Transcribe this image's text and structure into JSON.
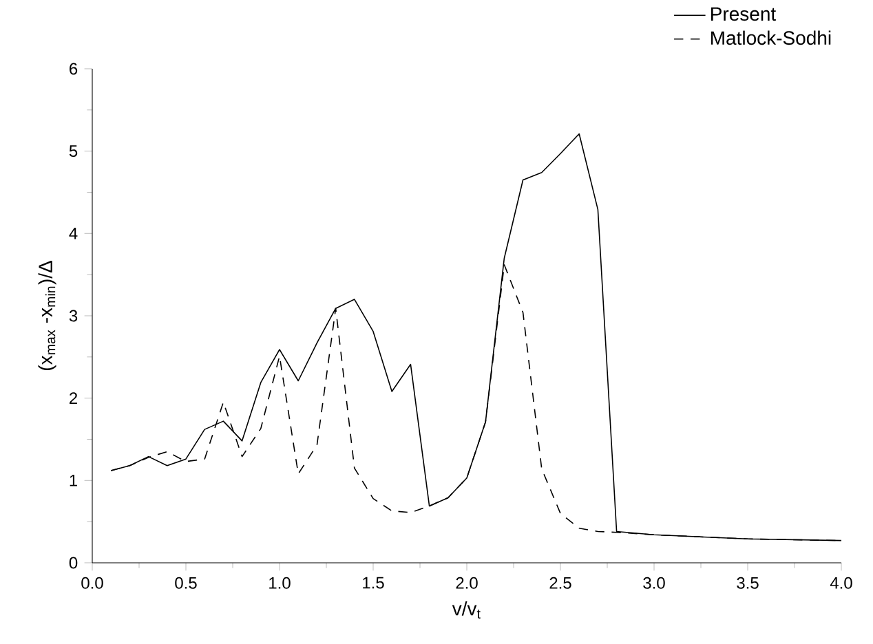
{
  "chart_data": {
    "type": "line",
    "xlabel": "v/v$_{t}$",
    "ylabel": "(x$_{max}$ -x$_{min}$)/Δ",
    "x": [
      0.1,
      0.2,
      0.3,
      0.4,
      0.5,
      0.6,
      0.7,
      0.8,
      0.9,
      1.0,
      1.1,
      1.2,
      1.3,
      1.4,
      1.5,
      1.6,
      1.7,
      1.8,
      1.9,
      2.0,
      2.1,
      2.2,
      2.3,
      2.4,
      2.5,
      2.6,
      2.7,
      2.8,
      3.0,
      3.5,
      4.0
    ],
    "series": [
      {
        "name": "Present",
        "color": "#000000",
        "line_style": "solid",
        "values": [
          1.12,
          1.18,
          1.29,
          1.18,
          1.26,
          1.62,
          1.72,
          1.48,
          2.19,
          2.59,
          2.21,
          2.67,
          3.09,
          3.2,
          2.81,
          2.08,
          2.41,
          0.69,
          0.79,
          1.03,
          1.71,
          3.7,
          4.65,
          4.74,
          4.97,
          5.21,
          4.29,
          0.38,
          0.34,
          0.29,
          0.27
        ]
      },
      {
        "name": "Matlock-Sodhi",
        "color": "#000000",
        "line_style": "dashed",
        "values": [
          1.12,
          1.18,
          1.28,
          1.35,
          1.23,
          1.26,
          1.95,
          1.29,
          1.63,
          2.51,
          1.08,
          1.43,
          3.09,
          1.15,
          0.78,
          0.63,
          0.61,
          0.69,
          0.79,
          1.03,
          1.71,
          3.62,
          3.04,
          1.14,
          0.6,
          0.42,
          0.38,
          0.37,
          0.34,
          0.29,
          0.27
        ]
      }
    ],
    "xlim": [
      0,
      4
    ],
    "ylim": [
      0,
      6
    ],
    "xticks": [
      {
        "value": 0,
        "label": "0.0"
      },
      {
        "value": 0.5,
        "label": "0.5"
      },
      {
        "value": 1,
        "label": "1.0"
      },
      {
        "value": 1.5,
        "label": "1.5"
      },
      {
        "value": 2,
        "label": "2.0"
      },
      {
        "value": 2.5,
        "label": "2.5"
      },
      {
        "value": 3,
        "label": "3.0"
      },
      {
        "value": 3.5,
        "label": "3.5"
      },
      {
        "value": 4,
        "label": "4.0"
      }
    ],
    "yticks": [
      0,
      1,
      2,
      3,
      4,
      5,
      6
    ],
    "grid": false,
    "legend": "top right",
    "marker": "none"
  }
}
